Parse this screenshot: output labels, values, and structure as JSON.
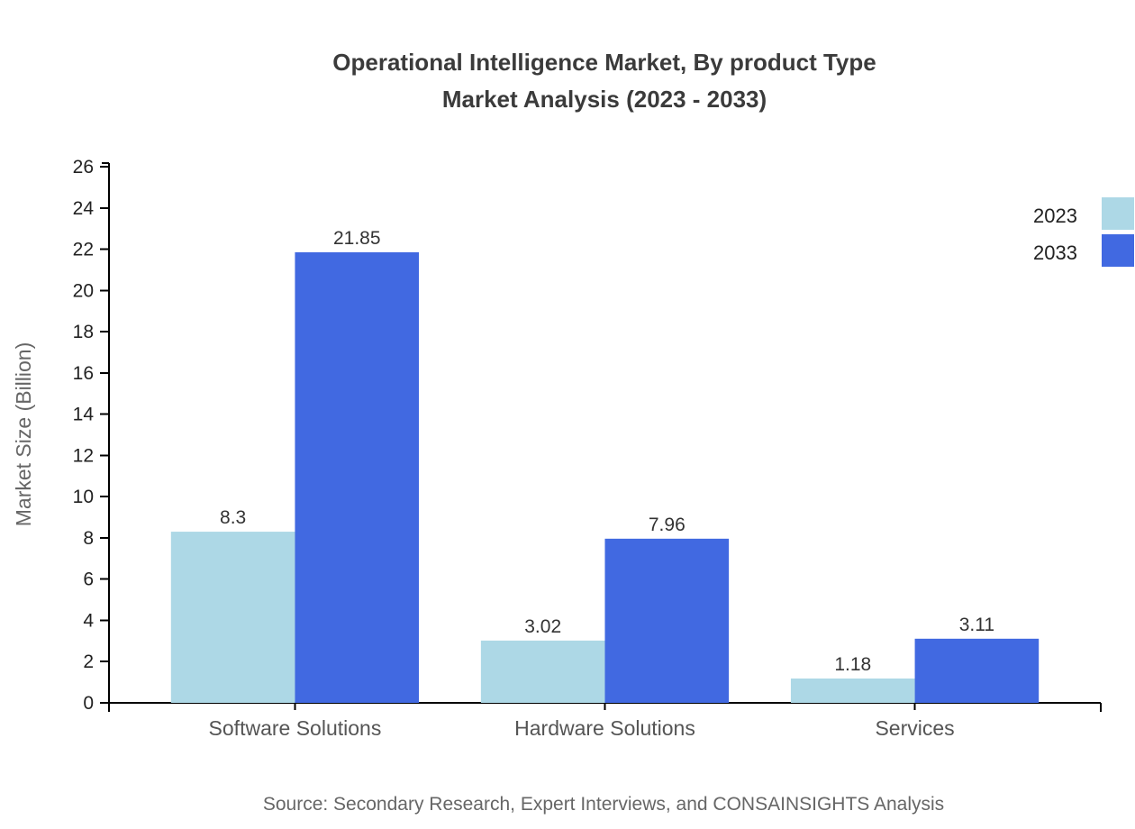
{
  "title": {
    "line1": "Operational Intelligence Market, By product Type",
    "line2": "Market Analysis (2023 - 2033)"
  },
  "source": "Source: Secondary Research, Expert Interviews, and CONSAINSIGHTS Analysis",
  "colors": {
    "series_2023": "#ADD8E6",
    "series_2033": "#4169E1",
    "axis": "#000000",
    "title_text": "#3b3b3b",
    "tick_text": "#222222",
    "category_text": "#555555",
    "value_text": "#333333",
    "muted_text": "#666666",
    "background": "#ffffff"
  },
  "chart_data": {
    "type": "bar",
    "title": "Operational Intelligence Market, By product Type Market Analysis (2023 - 2033)",
    "categories": [
      "Software Solutions",
      "Hardware Solutions",
      "Services"
    ],
    "series": [
      {
        "name": "2023",
        "color": "#ADD8E6",
        "values": [
          8.3,
          3.02,
          1.18
        ]
      },
      {
        "name": "2033",
        "color": "#4169E1",
        "values": [
          21.85,
          7.96,
          3.11
        ]
      }
    ],
    "value_labels": [
      "8.3",
      "21.85",
      "3.02",
      "7.96",
      "1.18",
      "3.11"
    ],
    "xlabel": "",
    "ylabel": "Market Size (Billion)",
    "ylim": [
      0,
      26
    ],
    "ytick_step": 2,
    "grid": false,
    "legend_position": "top-right",
    "show_value_labels": true
  }
}
